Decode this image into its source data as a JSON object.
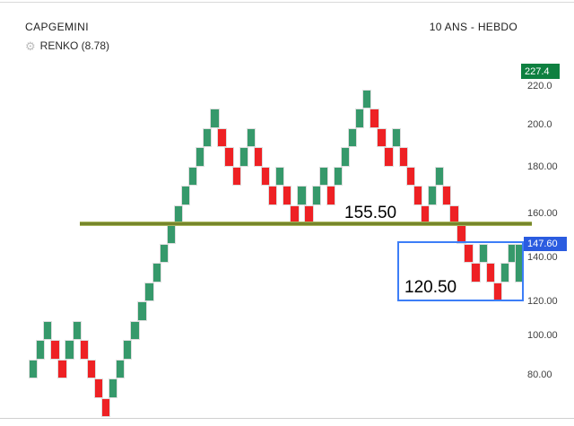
{
  "header": {
    "symbol": "CAPGEMINI",
    "indicator_label": "RENKO (8.78)",
    "timeframe": "10 ANS - HEBDO",
    "gear_icon": "gear"
  },
  "chart_data": {
    "type": "renko",
    "title": "CAPGEMINI",
    "indicator": "RENKO",
    "box_size": 8.78,
    "timeframe": "10 ANS - HEBDO",
    "brick_sequence": "UUUDDUUDDDDUUUUUUUUUUUUUUUDDDUUDDDUDDUDUUDUUUUUDDDUDDDDUUDDDDDUDDUU",
    "current_brick_boxes": 2,
    "legend": "U = up brick (green), D = down brick (red), final brick is in-progress spanning 2 boxes",
    "colors": {
      "up": "#36996B",
      "down": "#EE2124",
      "resistance_line": "#76862C",
      "low_box_border": "#3D7EF7",
      "high_badge_bg": "#0E8040",
      "last_price_badge_bg": "#2B5CE0"
    },
    "y_axis": {
      "ticks": [
        "220.0",
        "200.0",
        "180.00",
        "160.00",
        "140.00",
        "120.00",
        "100.00",
        "80.00"
      ],
      "high_marker": "227.4",
      "last_price": "147.60"
    },
    "annotations": {
      "resistance_line": {
        "label": "155.50",
        "price": 155.5
      },
      "low_box": {
        "label": "120.50",
        "price": 120.5
      }
    }
  }
}
